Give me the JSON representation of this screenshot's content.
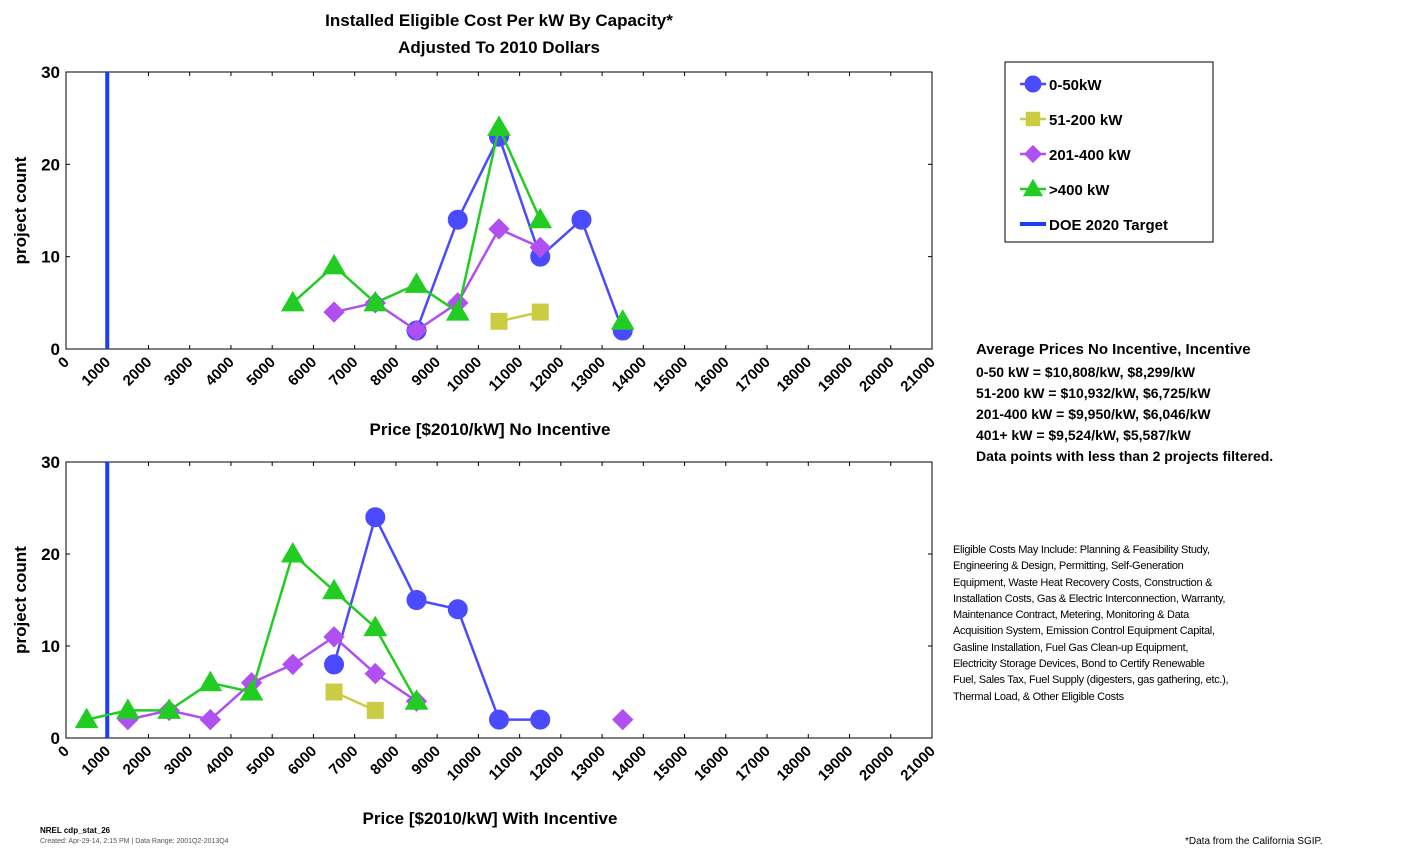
{
  "chart_data": [
    {
      "type": "line",
      "title": "Installed Eligible Cost Per kW By Capacity*",
      "subtitle": "Adjusted To 2010 Dollars",
      "x_label": "Price [$2010/kW] No Incentive",
      "y_label": "project count",
      "xlim": [
        0,
        21000
      ],
      "xticks": [
        0,
        1000,
        2000,
        3000,
        4000,
        5000,
        6000,
        7000,
        8000,
        9000,
        10000,
        11000,
        12000,
        13000,
        14000,
        15000,
        16000,
        17000,
        18000,
        19000,
        20000,
        21000
      ],
      "ylim": [
        0,
        30
      ],
      "yticks": [
        0,
        10,
        20,
        30
      ],
      "reference_line": {
        "name": "DOE 2020 Target",
        "x": 1000,
        "color": "#1a3cff"
      },
      "series": [
        {
          "name": "0-50kW",
          "color": "#4a4aff",
          "marker": "circle",
          "x": [
            8500,
            9500,
            10500,
            11500,
            12500,
            13500
          ],
          "values": [
            2,
            14,
            23,
            10,
            14,
            2
          ]
        },
        {
          "name": "51-200 kW",
          "color": "#cccc44",
          "marker": "square",
          "x": [
            10500,
            11500
          ],
          "values": [
            3,
            4
          ]
        },
        {
          "name": "201-400 kW",
          "color": "#b050f0",
          "marker": "diamond",
          "x": [
            6500,
            7500,
            8500,
            9500,
            10500,
            11500
          ],
          "values": [
            4,
            5,
            2,
            5,
            13,
            11
          ]
        },
        {
          "name": ">400 kW",
          "color": "#22cc22",
          "marker": "triangle",
          "x": [
            5500,
            6500,
            7500,
            8500,
            9500,
            10500,
            11500,
            12500,
            13500
          ],
          "values": [
            5,
            9,
            5,
            7,
            4,
            24,
            14,
            null,
            3
          ]
        }
      ]
    },
    {
      "type": "line",
      "x_label": "Price [$2010/kW] With Incentive",
      "y_label": "project count",
      "xlim": [
        0,
        21000
      ],
      "xticks": [
        0,
        1000,
        2000,
        3000,
        4000,
        5000,
        6000,
        7000,
        8000,
        9000,
        10000,
        11000,
        12000,
        13000,
        14000,
        15000,
        16000,
        17000,
        18000,
        19000,
        20000,
        21000
      ],
      "ylim": [
        0,
        30
      ],
      "yticks": [
        0,
        10,
        20,
        30
      ],
      "reference_line": {
        "name": "DOE 2020 Target",
        "x": 1000,
        "color": "#1a3cff"
      },
      "series": [
        {
          "name": "0-50kW",
          "color": "#4a4aff",
          "marker": "circle",
          "x": [
            6500,
            7500,
            8500,
            9500,
            10500,
            11500
          ],
          "values": [
            8,
            24,
            15,
            14,
            2,
            2
          ]
        },
        {
          "name": "51-200 kW",
          "color": "#cccc44",
          "marker": "square",
          "x": [
            6500,
            7500
          ],
          "values": [
            5,
            3
          ]
        },
        {
          "name": "201-400 kW",
          "color": "#b050f0",
          "marker": "diamond",
          "x": [
            1500,
            2500,
            3500,
            4500,
            5500,
            6500,
            7500,
            8500,
            9500,
            13500
          ],
          "values": [
            2,
            3,
            2,
            6,
            8,
            11,
            7,
            4,
            null,
            2
          ]
        },
        {
          "name": ">400 kW",
          "color": "#22cc22",
          "marker": "triangle",
          "x": [
            500,
            1500,
            2500,
            3500,
            4500,
            5500,
            6500,
            7500,
            8500
          ],
          "values": [
            2,
            3,
            3,
            6,
            5,
            20,
            16,
            12,
            4
          ]
        }
      ]
    }
  ],
  "average_prices": {
    "heading": "Average Prices No Incentive, Incentive",
    "lines": [
      "0-50 kW = $10,808/kW, $8,299/kW",
      "51-200 kW = $10,932/kW, $6,725/kW",
      "201-400 kW = $9,950/kW, $6,046/kW",
      "401+ kW = $9,524/kW, $5,587/kW",
      "Data points with less than 2 projects filtered."
    ]
  },
  "eligible_costs": [
    "Eligible Costs May Include: Planning & Feasibility Study,",
    "Engineering & Design, Permitting, Self-Generation",
    "Equipment, Waste Heat Recovery Costs, Construction &",
    "Installation Costs, Gas & Electric Interconnection, Warranty,",
    "Maintenance Contract, Metering, Monitoring & Data",
    "Acquisition System, Emission Control Equipment Capital,",
    "Gasline Installation, Fuel Gas Clean-up Equipment,",
    "Electricity Storage Devices, Bond to Certify Renewable",
    "Fuel, Sales Tax, Fuel Supply (digesters, gas gathering, etc.),",
    "Thermal Load, & Other Eligible Costs"
  ],
  "footer": {
    "id": "NREL cdp_stat_26",
    "created": "Created: Apr-29-14, 2:15 PM | Data Range: 2001Q2-2013Q4",
    "source": "*Data from the California SGIP."
  }
}
